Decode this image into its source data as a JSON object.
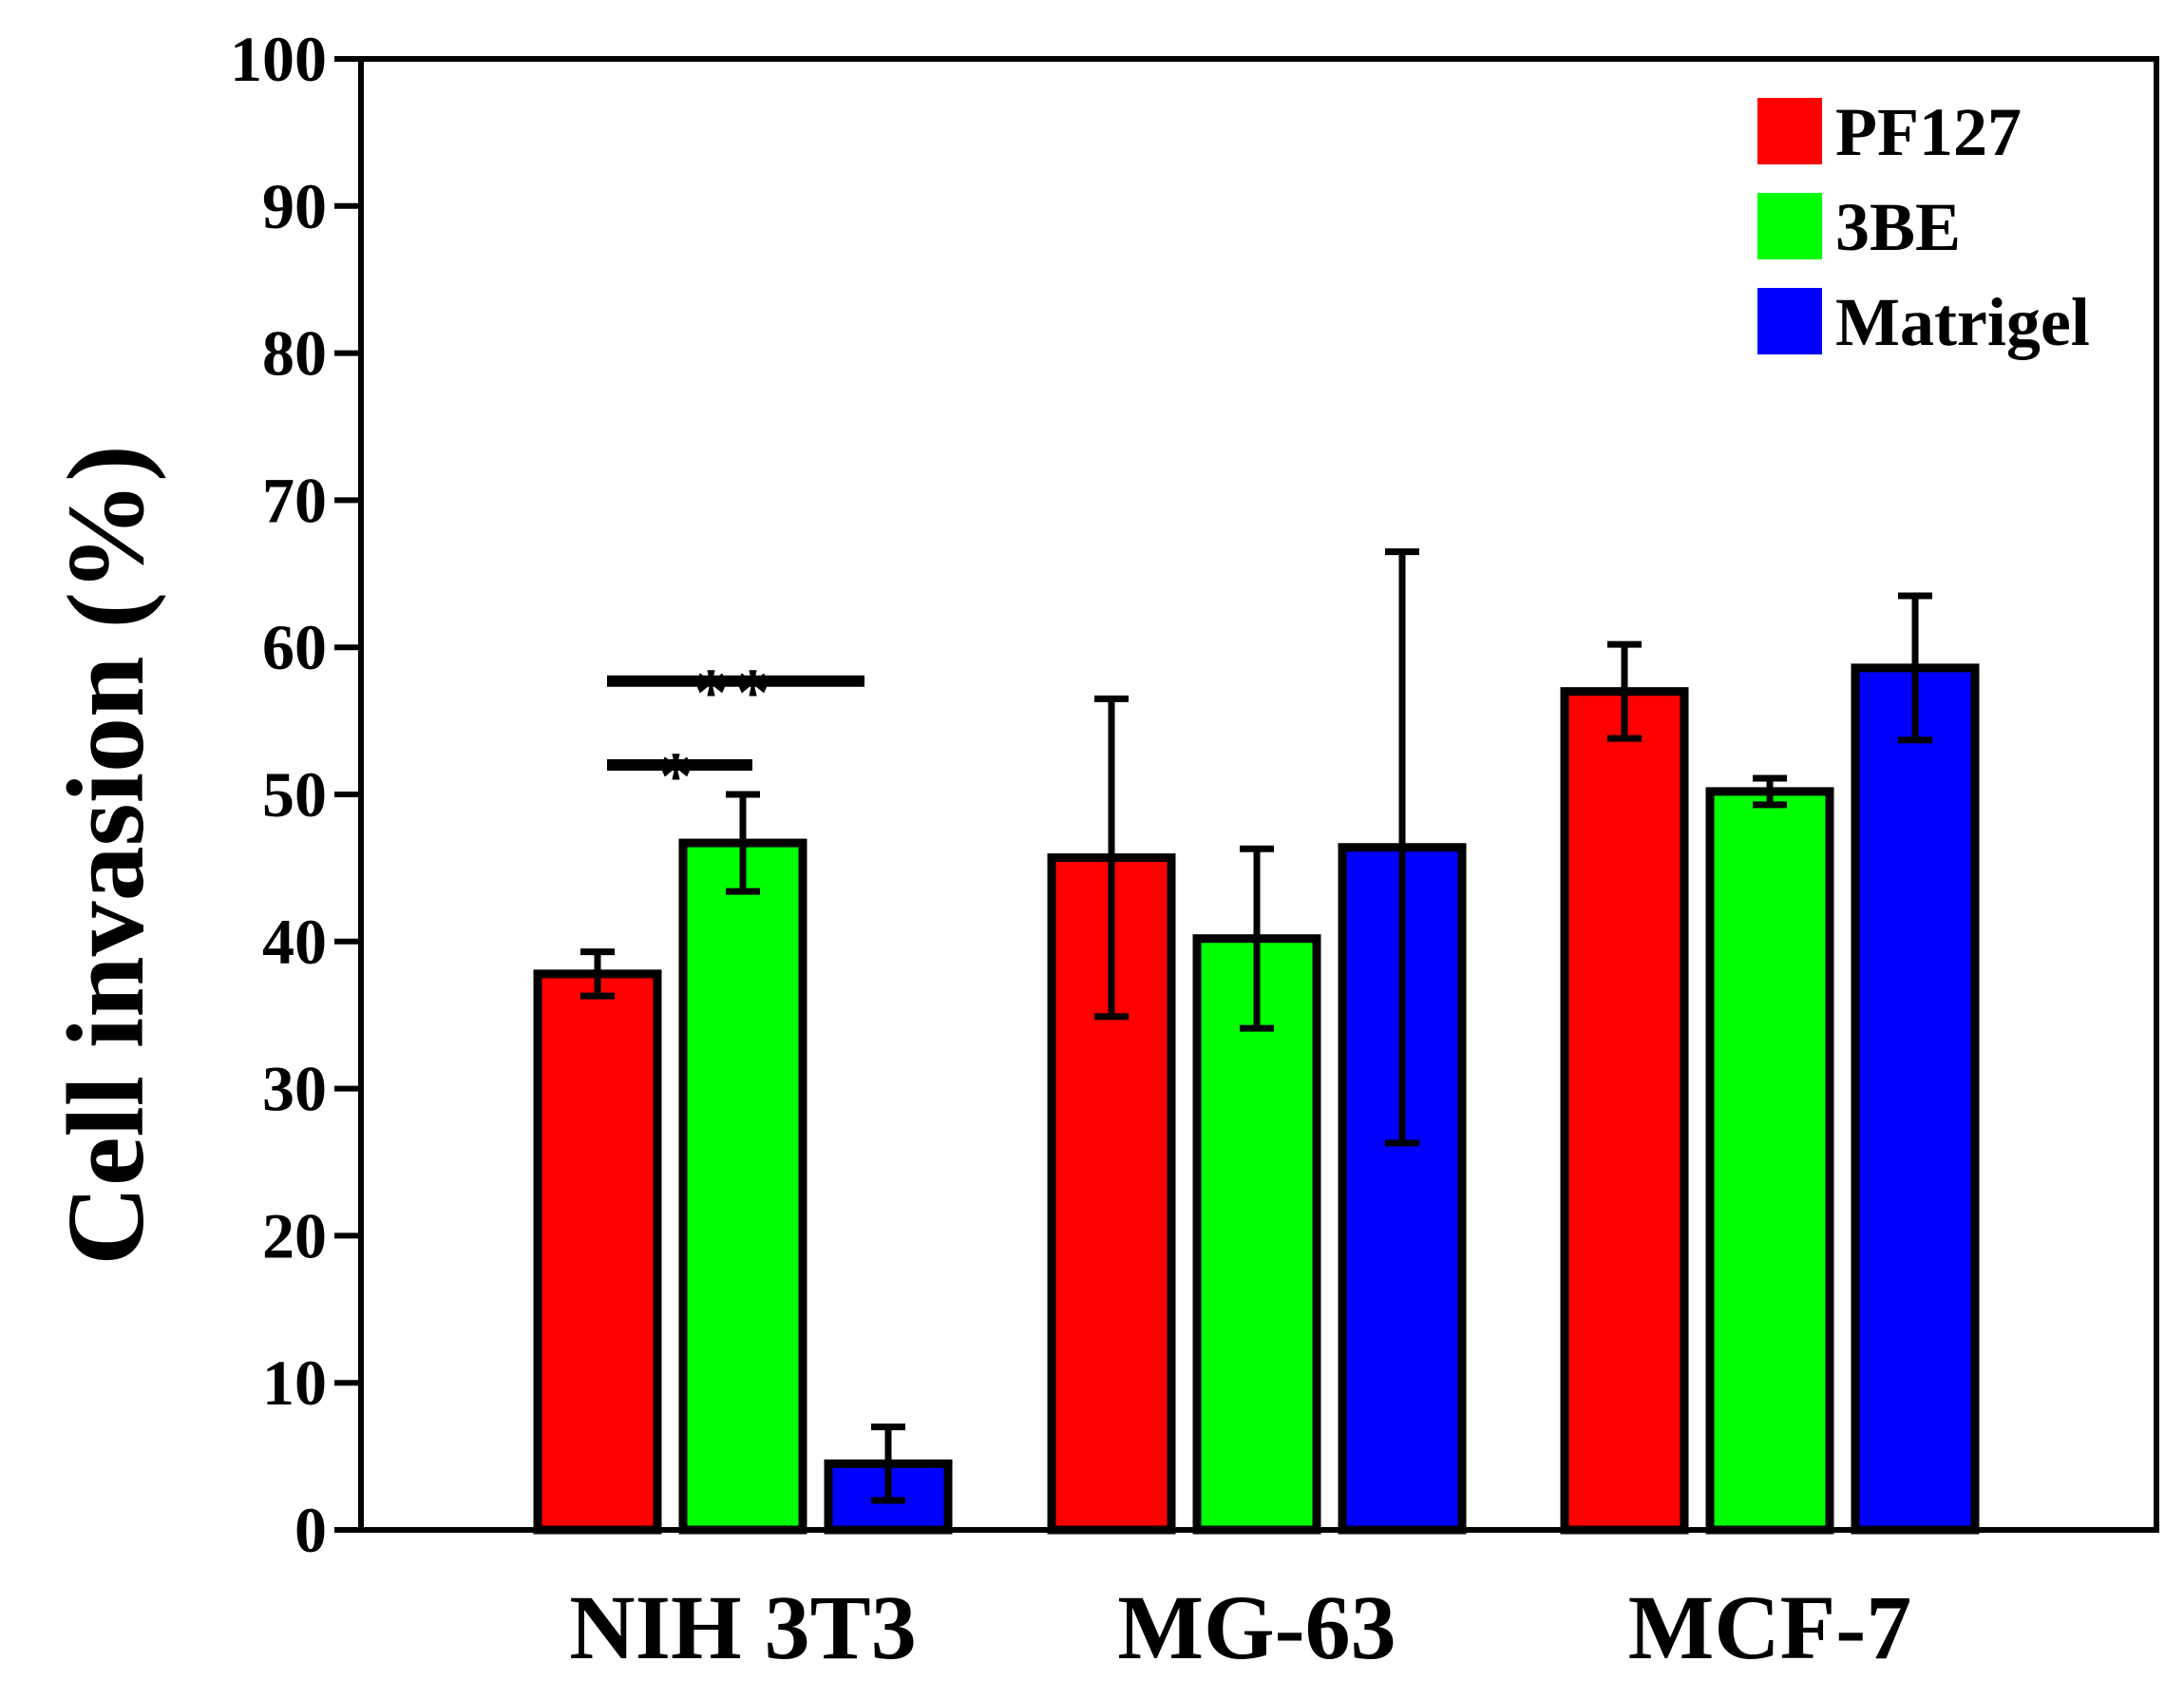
{
  "chart_data": {
    "type": "bar",
    "categories": [
      "NIH 3T3",
      "MG-63",
      "MCF-7"
    ],
    "series": [
      {
        "name": "PF127",
        "color": "#ff0000",
        "values": [
          37.8,
          45.7,
          57.0
        ],
        "errors": [
          1.5,
          10.8,
          3.2
        ]
      },
      {
        "name": "3BE",
        "color": "#00ff00",
        "values": [
          46.7,
          40.2,
          50.2
        ],
        "errors": [
          3.3,
          6.1,
          0.9
        ]
      },
      {
        "name": "Matrigel",
        "color": "#0000ff",
        "values": [
          4.5,
          46.4,
          58.6
        ],
        "errors": [
          2.5,
          20.1,
          4.9
        ]
      }
    ],
    "ylabel": "Cell invasion (%)",
    "xlabel": "",
    "ylim": [
      0,
      100
    ],
    "yticks": [
      "0",
      "10",
      "20",
      "30",
      "40",
      "50",
      "60",
      "70",
      "80",
      "90",
      "100"
    ],
    "legend_position": "top-right",
    "grid": false,
    "significance": [
      {
        "category": "NIH 3T3",
        "from_series": 0,
        "to_series": 1,
        "label": "*",
        "y": 52
      },
      {
        "category": "NIH 3T3",
        "from_series": 0,
        "to_series": 2,
        "label": "**",
        "y": 57.7
      }
    ]
  }
}
